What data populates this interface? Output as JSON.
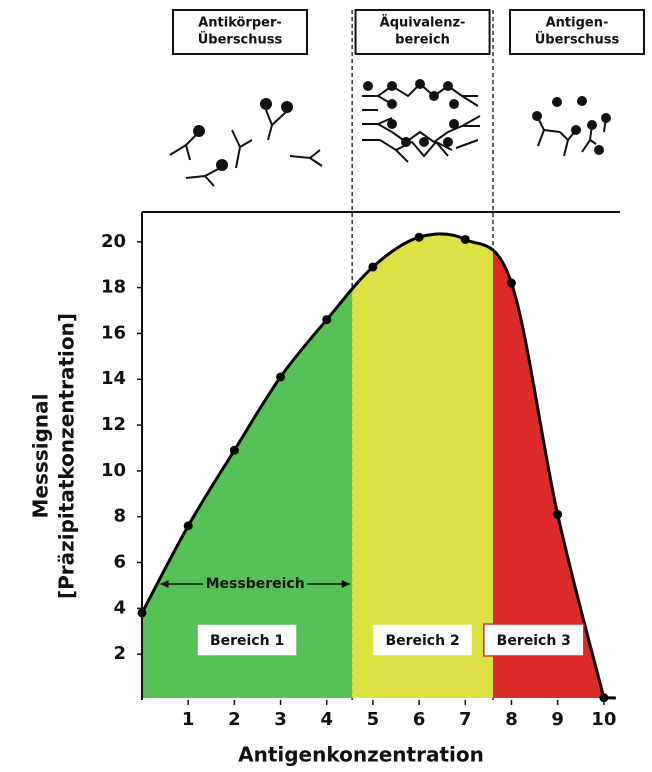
{
  "chart_data": {
    "type": "area-curve",
    "x_label": "Antigenkonzentration",
    "y_label": [
      "Messsignal",
      "[Präzipitatkonzentration]"
    ],
    "x": [
      0,
      1,
      2,
      3,
      4,
      5,
      6,
      7,
      8,
      9,
      10
    ],
    "values": [
      3.8,
      7.6,
      10.9,
      14.1,
      16.6,
      18.9,
      20.2,
      20.1,
      18.2,
      8.1,
      0.1
    ],
    "color": "#000000",
    "xlim": [
      0,
      10.35
    ],
    "ylim": [
      0,
      21.3
    ],
    "xticks": [
      1,
      2,
      3,
      4,
      5,
      6,
      7,
      8,
      9,
      10
    ],
    "yticks": [
      2,
      4,
      6,
      8,
      10,
      12,
      14,
      16,
      18,
      20
    ],
    "regions": [
      {
        "label": "Bereich 1",
        "from": 0,
        "to": 4.55,
        "color": "#55c157"
      },
      {
        "label": "Bereich 2",
        "from": 4.55,
        "to": 7.6,
        "color": "#dde244"
      },
      {
        "label": "Bereich 3",
        "from": 7.6,
        "to": 10.35,
        "color": "#dd2a2a"
      }
    ],
    "measuring_range": {
      "label": "Messbereich",
      "from": 0.4,
      "to": 4.5
    },
    "zones": [
      {
        "lines": [
          "Antikörper-",
          "Überschuss"
        ]
      },
      {
        "lines": [
          "Äquivalenz-",
          "bereich"
        ]
      },
      {
        "lines": [
          "Antigen-",
          "Überschuss"
        ]
      }
    ]
  }
}
